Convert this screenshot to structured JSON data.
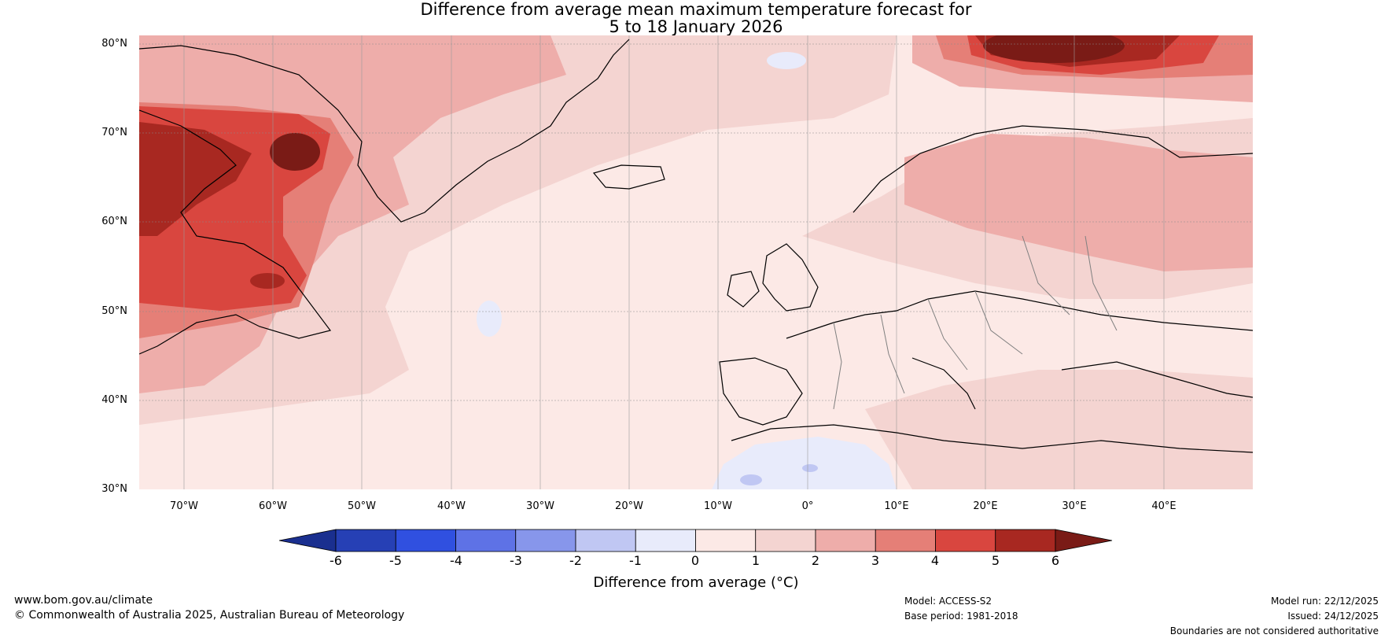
{
  "title": {
    "line1": "Difference from average mean maximum temperature forecast for",
    "line2": "5 to 18 January 2026"
  },
  "map": {
    "lat_labels": [
      "80°N",
      "70°N",
      "60°N",
      "50°N",
      "40°N",
      "30°N"
    ],
    "lon_labels": [
      "70°W",
      "60°W",
      "50°W",
      "40°W",
      "30°W",
      "20°W",
      "10°W",
      "0°",
      "10°E",
      "20°E",
      "30°E",
      "40°E"
    ],
    "lon_extent": [
      -75,
      50
    ],
    "lat_extent": [
      30,
      81
    ]
  },
  "colorbar": {
    "ticks": [
      "-6",
      "-5",
      "-4",
      "-3",
      "-2",
      "-1",
      "0",
      "1",
      "2",
      "3",
      "4",
      "5",
      "6"
    ],
    "colors": [
      "#1a2f8f",
      "#2640b5",
      "#3050e0",
      "#5e72e6",
      "#8796eb",
      "#c0c7f3",
      "#e8ebfb",
      "#fce9e6",
      "#f4d4d1",
      "#eeadaa",
      "#e57f77",
      "#d9463f",
      "#a82821",
      "#7a1b16"
    ],
    "label": "Difference from average (°C)"
  },
  "footer": {
    "website": "www.bom.gov.au/climate",
    "copyright": "© Commonwealth of Australia 2025, Australian Bureau of Meteorology",
    "model": "Model: ACCESS-S2",
    "base_period": "Base period: 1981-2018",
    "model_run": "Model run: 22/12/2025",
    "issued": "Issued: 24/12/2025",
    "disclaimer": "Boundaries are not considered authoritative"
  }
}
